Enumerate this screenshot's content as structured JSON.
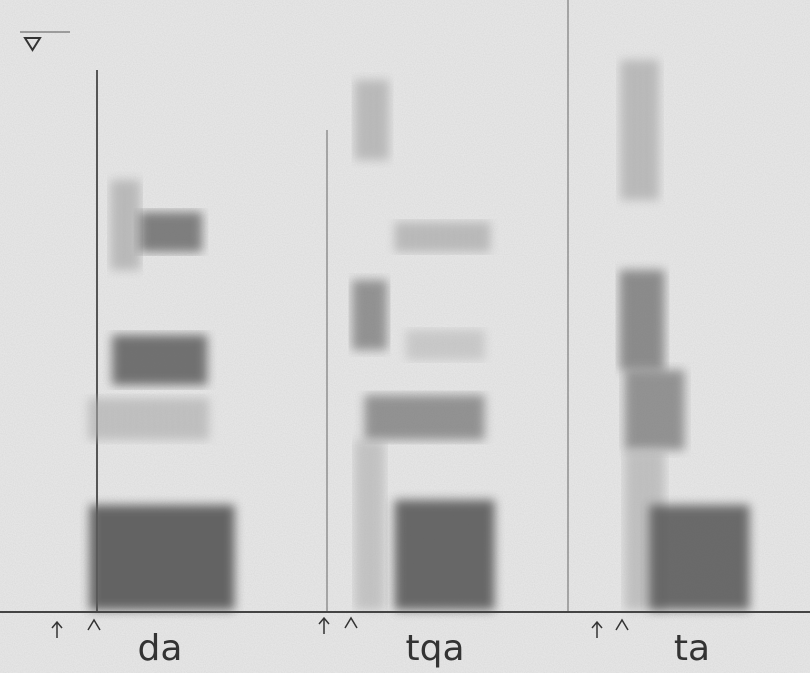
{
  "labels": [
    "da",
    "tqa",
    "ta"
  ]
}
